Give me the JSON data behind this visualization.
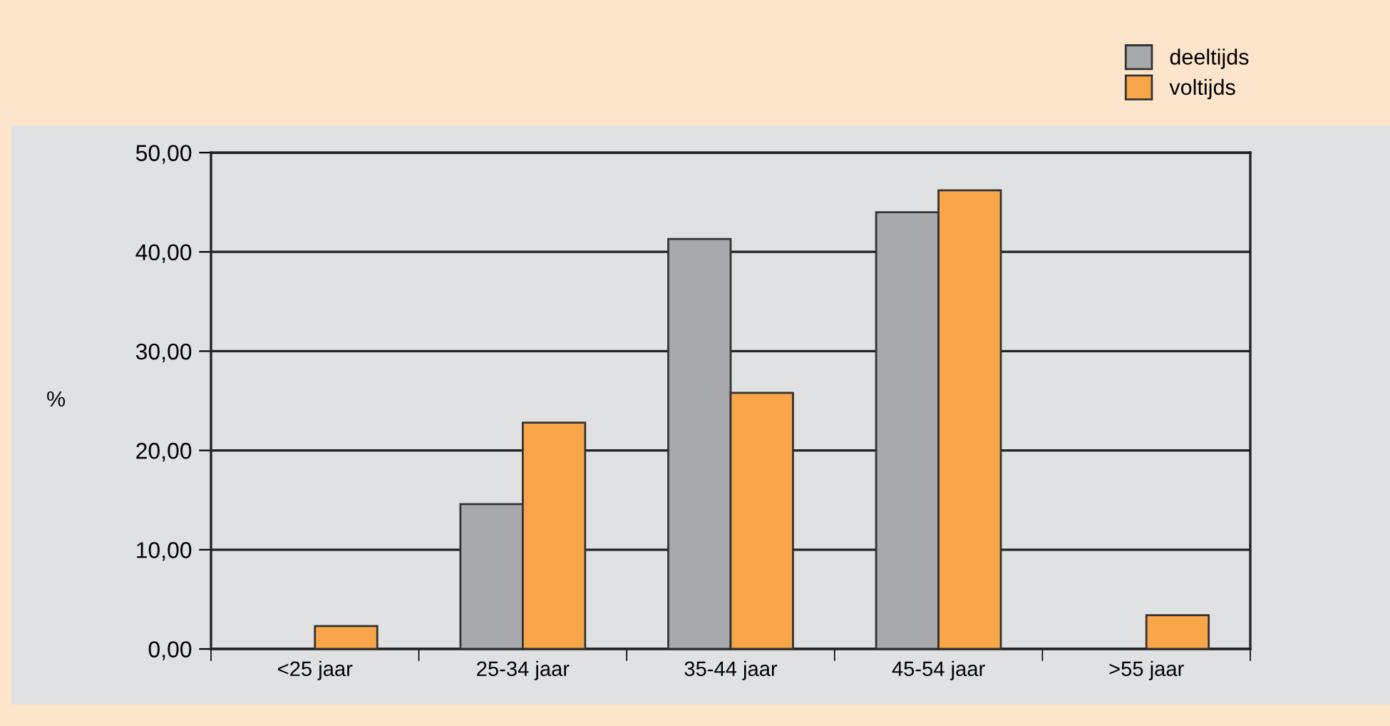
{
  "chart_data": {
    "type": "bar",
    "ylabel": "%",
    "categories": [
      "<25 jaar",
      "25-34 jaar",
      "35-44 jaar",
      "45-54 jaar",
      ">55 jaar"
    ],
    "series": [
      {
        "name": "deeltijds",
        "color": "#a8a9ad",
        "values": [
          null,
          14.6,
          41.3,
          44.0,
          null
        ]
      },
      {
        "name": "voltijds",
        "color": "#f9a54a",
        "values": [
          2.3,
          22.8,
          25.8,
          46.2,
          3.4
        ]
      }
    ],
    "ylim": [
      0,
      50
    ],
    "yticks": [
      {
        "value": 0,
        "label": "0,00"
      },
      {
        "value": 10,
        "label": "10,00"
      },
      {
        "value": 20,
        "label": "20,00"
      },
      {
        "value": 30,
        "label": "30,00"
      },
      {
        "value": 40,
        "label": "40,00"
      },
      {
        "value": 50,
        "label": "50,00"
      }
    ],
    "grid": "y",
    "legend": "top right"
  }
}
